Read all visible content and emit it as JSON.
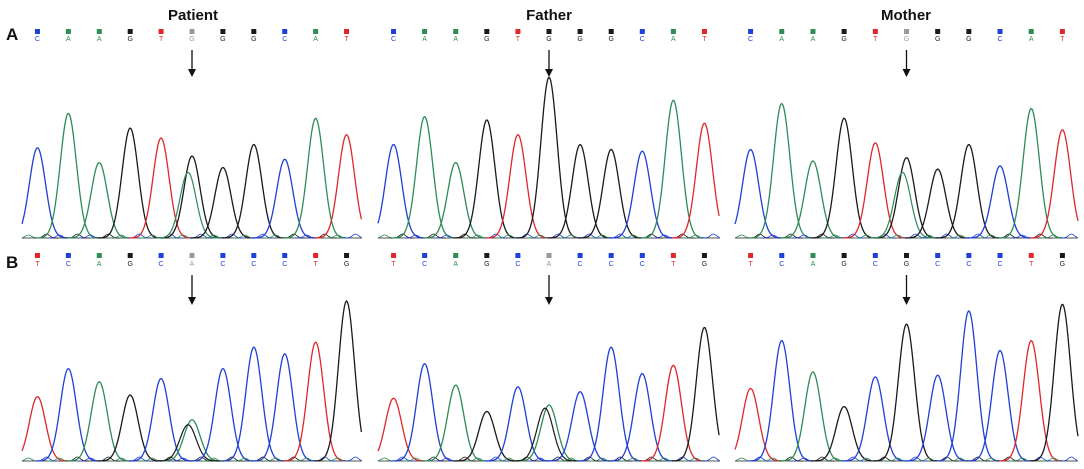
{
  "columns": [
    "Patient",
    "Father",
    "Mother"
  ],
  "rows": [
    {
      "label": "A",
      "panels": [
        {
          "bases": [
            "C",
            "A",
            "A",
            "G",
            "T",
            "G",
            "G",
            "G",
            "C",
            "A",
            "T"
          ],
          "variant_index": 5
        },
        {
          "bases": [
            "C",
            "A",
            "A",
            "G",
            "T",
            "G",
            "G",
            "G",
            "C",
            "A",
            "T"
          ],
          "variant_index": 5
        },
        {
          "bases": [
            "C",
            "A",
            "A",
            "G",
            "T",
            "G",
            "G",
            "G",
            "C",
            "A",
            "T"
          ],
          "variant_index": 5
        }
      ]
    },
    {
      "label": "B",
      "panels": [
        {
          "bases": [
            "T",
            "C",
            "A",
            "G",
            "C",
            "A",
            "C",
            "C",
            "C",
            "T",
            "G"
          ],
          "variant_index": 5
        },
        {
          "bases": [
            "T",
            "C",
            "A",
            "G",
            "C",
            "A",
            "C",
            "C",
            "C",
            "T",
            "G"
          ],
          "variant_index": 5
        },
        {
          "bases": [
            "T",
            "C",
            "A",
            "G",
            "C",
            "G",
            "C",
            "C",
            "C",
            "T",
            "G"
          ],
          "variant_index": 5
        }
      ]
    }
  ],
  "colors": {
    "A": "#2e8b57",
    "C": "#1f3fd8",
    "G": "#1a1a1a",
    "T": "#e0262b",
    "variant": "#9a9a9a",
    "baseline": "#1a1a1a"
  }
}
